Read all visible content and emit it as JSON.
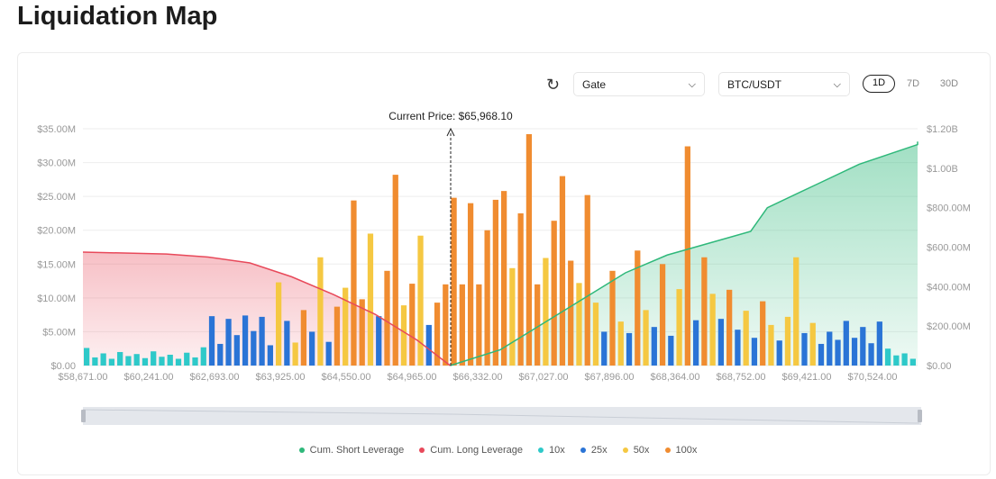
{
  "page": {
    "title": "Liquidation Map"
  },
  "controls": {
    "refresh_icon": "refresh-icon",
    "exchange": "Gate",
    "pair": "BTC/USDT",
    "timeframes": [
      "1D",
      "7D",
      "30D"
    ],
    "active_timeframe": "1D"
  },
  "chart_data": {
    "type": "bar+area",
    "annotation": "Current Price: $65,968.10",
    "current_price_index": 44,
    "left_axis": {
      "ticks": [
        "$0.00",
        "$5.00M",
        "$10.00M",
        "$15.00M",
        "$20.00M",
        "$25.00M",
        "$30.00M",
        "$35.00M"
      ],
      "range": [
        0,
        35
      ]
    },
    "right_axis": {
      "ticks": [
        "$0.00",
        "$200.00M",
        "$400.00M",
        "$600.00M",
        "$800.00M",
        "$1.00B",
        "$1.20B"
      ],
      "range": [
        0,
        1200
      ]
    },
    "x_ticks": [
      "$58,671.00",
      "$60,241.00",
      "$62,693.00",
      "$63,925.00",
      "$64,550.00",
      "$64,965.00",
      "$66,332.00",
      "$67,027.00",
      "$67,896.00",
      "$68,364.00",
      "$68,752.00",
      "$69,421.00",
      "$70,524.00"
    ],
    "colors": {
      "10x": "#2ec9c9",
      "25x": "#2a74d6",
      "50x": "#f5c842",
      "100x": "#f08c30",
      "short": "#2eb87a",
      "long": "#e8495a"
    },
    "bars_unit": "M",
    "bars": [
      [
        2.6,
        "10x"
      ],
      [
        1.2,
        "10x"
      ],
      [
        1.8,
        "10x"
      ],
      [
        1.0,
        "10x"
      ],
      [
        2.0,
        "10x"
      ],
      [
        1.4,
        "10x"
      ],
      [
        1.7,
        "10x"
      ],
      [
        1.1,
        "10x"
      ],
      [
        2.1,
        "10x"
      ],
      [
        1.3,
        "10x"
      ],
      [
        1.6,
        "10x"
      ],
      [
        1.0,
        "10x"
      ],
      [
        1.9,
        "10x"
      ],
      [
        1.2,
        "10x"
      ],
      [
        2.7,
        "10x"
      ],
      [
        7.3,
        "25x"
      ],
      [
        3.2,
        "25x"
      ],
      [
        6.9,
        "25x"
      ],
      [
        4.5,
        "25x"
      ],
      [
        7.4,
        "25x"
      ],
      [
        5.1,
        "25x"
      ],
      [
        7.2,
        "25x"
      ],
      [
        3.0,
        "25x"
      ],
      [
        12.3,
        "50x"
      ],
      [
        6.6,
        "25x"
      ],
      [
        3.4,
        "50x"
      ],
      [
        8.2,
        "100x"
      ],
      [
        5.0,
        "25x"
      ],
      [
        16.0,
        "50x"
      ],
      [
        3.5,
        "25x"
      ],
      [
        8.7,
        "100x"
      ],
      [
        11.5,
        "50x"
      ],
      [
        24.4,
        "100x"
      ],
      [
        9.8,
        "100x"
      ],
      [
        19.5,
        "50x"
      ],
      [
        7.3,
        "25x"
      ],
      [
        14.0,
        "100x"
      ],
      [
        28.2,
        "100x"
      ],
      [
        8.9,
        "50x"
      ],
      [
        12.1,
        "100x"
      ],
      [
        19.2,
        "50x"
      ],
      [
        6.0,
        "25x"
      ],
      [
        9.3,
        "100x"
      ],
      [
        12.0,
        "100x"
      ],
      [
        24.8,
        "100x"
      ],
      [
        12.0,
        "100x"
      ],
      [
        24.0,
        "100x"
      ],
      [
        12.0,
        "100x"
      ],
      [
        20.0,
        "100x"
      ],
      [
        24.5,
        "100x"
      ],
      [
        25.8,
        "100x"
      ],
      [
        14.4,
        "50x"
      ],
      [
        22.5,
        "100x"
      ],
      [
        34.2,
        "100x"
      ],
      [
        12.0,
        "100x"
      ],
      [
        15.9,
        "50x"
      ],
      [
        21.4,
        "100x"
      ],
      [
        28.0,
        "100x"
      ],
      [
        15.5,
        "100x"
      ],
      [
        12.2,
        "50x"
      ],
      [
        25.2,
        "100x"
      ],
      [
        9.3,
        "50x"
      ],
      [
        5.0,
        "25x"
      ],
      [
        14.0,
        "100x"
      ],
      [
        6.5,
        "50x"
      ],
      [
        4.8,
        "25x"
      ],
      [
        17.0,
        "100x"
      ],
      [
        8.2,
        "50x"
      ],
      [
        5.7,
        "25x"
      ],
      [
        15.0,
        "100x"
      ],
      [
        4.4,
        "25x"
      ],
      [
        11.3,
        "50x"
      ],
      [
        32.4,
        "100x"
      ],
      [
        6.7,
        "25x"
      ],
      [
        16.0,
        "100x"
      ],
      [
        10.6,
        "50x"
      ],
      [
        6.9,
        "25x"
      ],
      [
        11.2,
        "100x"
      ],
      [
        5.3,
        "25x"
      ],
      [
        8.1,
        "50x"
      ],
      [
        4.1,
        "25x"
      ],
      [
        9.5,
        "100x"
      ],
      [
        6.0,
        "50x"
      ],
      [
        3.7,
        "25x"
      ],
      [
        7.2,
        "50x"
      ],
      [
        16.0,
        "50x"
      ],
      [
        4.8,
        "25x"
      ],
      [
        6.3,
        "50x"
      ],
      [
        3.2,
        "25x"
      ],
      [
        5.0,
        "25x"
      ],
      [
        3.8,
        "25x"
      ],
      [
        6.6,
        "25x"
      ],
      [
        4.1,
        "25x"
      ],
      [
        5.7,
        "25x"
      ],
      [
        3.3,
        "25x"
      ],
      [
        6.5,
        "25x"
      ],
      [
        2.5,
        "10x"
      ],
      [
        1.5,
        "10x"
      ],
      [
        1.8,
        "10x"
      ],
      [
        1.0,
        "10x"
      ]
    ],
    "series": [
      {
        "name": "Cum. Short Leverage",
        "axis": "right",
        "values_at_index": [
          [
            44,
            0
          ],
          [
            50,
            80
          ],
          [
            55,
            210
          ],
          [
            60,
            340
          ],
          [
            65,
            470
          ],
          [
            70,
            560
          ],
          [
            75,
            620
          ],
          [
            80,
            680
          ],
          [
            82,
            800
          ],
          [
            88,
            920
          ],
          [
            93,
            1020
          ],
          [
            100,
            1120
          ],
          [
            106,
            1135
          ]
        ]
      },
      {
        "name": "Cum. Long Leverage",
        "axis": "right",
        "values_at_index": [
          [
            0,
            575
          ],
          [
            10,
            565
          ],
          [
            15,
            550
          ],
          [
            20,
            520
          ],
          [
            25,
            450
          ],
          [
            30,
            360
          ],
          [
            35,
            260
          ],
          [
            40,
            130
          ],
          [
            44,
            0
          ]
        ]
      }
    ],
    "legend": [
      "Cum. Short Leverage",
      "Cum. Long Leverage",
      "10x",
      "25x",
      "50x",
      "100x"
    ]
  }
}
